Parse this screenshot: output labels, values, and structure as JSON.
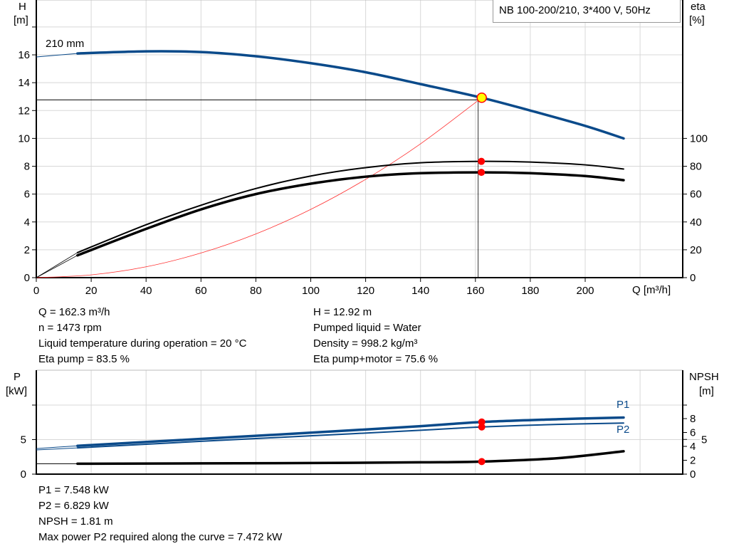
{
  "legend_title": "NB 100-200/210, 3*400 V, 50Hz",
  "colors": {
    "head_curve": "#0a4a8a",
    "efficiency_curve": "#000000",
    "system_curve": "#ff3030",
    "power_curve": "#0a4a8a",
    "npsh_curve": "#000000",
    "duty_point_fill": "#ffff00",
    "duty_point_marker": "#ff0000",
    "grid": "#d8d8d8"
  },
  "chart_data": [
    {
      "type": "line",
      "title": "NB 100-200/210, 3*400 V, 50Hz",
      "xlabel": "Q [m³/h]",
      "ylabel_left": "H [m]",
      "ylabel_left_name": "H",
      "ylabel_left_unit": "[m]",
      "ylabel_right_name": "eta",
      "ylabel_right_unit": "[%]",
      "xlim": [
        0,
        235
      ],
      "ylim_left": [
        0,
        19.9
      ],
      "ylim_right": [
        0,
        199
      ],
      "x_ticks": [
        0,
        20,
        40,
        60,
        80,
        100,
        120,
        140,
        160,
        180,
        200
      ],
      "y_ticks_left": [
        0,
        2,
        4,
        6,
        8,
        10,
        12,
        14,
        16
      ],
      "y_ticks_right": [
        0,
        20,
        40,
        60,
        80,
        100
      ],
      "grid": true,
      "legend_placement": "top-right",
      "curve_label": "210 mm",
      "series": [
        {
          "key": "head",
          "axis": "left",
          "x": [
            0,
            15,
            40,
            60,
            80,
            100,
            120,
            140,
            162.3,
            180,
            200,
            214
          ],
          "y": [
            15.85,
            16.1,
            16.25,
            16.2,
            15.9,
            15.4,
            14.75,
            13.9,
            12.92,
            12.0,
            10.9,
            10.0
          ]
        },
        {
          "key": "eta_pump",
          "axis": "right",
          "x": [
            0,
            15,
            40,
            60,
            80,
            100,
            120,
            140,
            162.3,
            180,
            200,
            214
          ],
          "y": [
            0,
            18,
            38,
            52,
            64,
            73,
            79,
            82.5,
            83.5,
            83,
            81,
            78
          ]
        },
        {
          "key": "eta_pump_motor",
          "axis": "right",
          "x": [
            0,
            15,
            40,
            60,
            80,
            100,
            120,
            140,
            162.3,
            180,
            200,
            214
          ],
          "y": [
            0,
            16,
            35,
            49,
            60,
            67.5,
            72.5,
            75,
            75.6,
            75,
            73,
            70
          ]
        },
        {
          "key": "system",
          "axis": "left",
          "x": [
            0,
            20,
            40,
            60,
            80,
            100,
            120,
            140,
            162.3
          ],
          "y": [
            0,
            0.2,
            0.78,
            1.77,
            3.14,
            4.9,
            7.06,
            9.61,
            12.92
          ]
        }
      ],
      "duty_point": {
        "Q": 162.3,
        "H": 12.92,
        "eta_pump": 83.5,
        "eta_pump_motor": 75.6
      }
    },
    {
      "type": "line",
      "xlabel": "",
      "ylabel_left_name": "P",
      "ylabel_left_unit": "[kW]",
      "ylabel_right_name": "NPSH",
      "ylabel_right_unit": "[m]",
      "xlim": [
        0,
        235
      ],
      "ylim_left": [
        0,
        15
      ],
      "ylim_right": [
        0,
        15
      ],
      "y_ticks_left": [
        0,
        5
      ],
      "y_ticks_right": [
        0,
        2,
        4,
        5,
        6,
        8
      ],
      "grid": true,
      "series": [
        {
          "key": "P1",
          "name": "P1",
          "axis": "left",
          "x": [
            0,
            15,
            60,
            100,
            140,
            162.3,
            190,
            214
          ],
          "y": [
            3.7,
            4.1,
            5.1,
            6.0,
            6.95,
            7.548,
            7.95,
            8.2
          ]
        },
        {
          "key": "P2",
          "name": "P2",
          "axis": "left",
          "x": [
            0,
            15,
            60,
            100,
            140,
            162.3,
            190,
            214
          ],
          "y": [
            3.5,
            3.8,
            4.75,
            5.55,
            6.35,
            6.829,
            7.2,
            7.4
          ]
        },
        {
          "key": "NPSH",
          "axis": "right",
          "x": [
            0,
            15,
            60,
            100,
            140,
            162.3,
            190,
            214
          ],
          "y": [
            1.5,
            1.5,
            1.55,
            1.6,
            1.7,
            1.81,
            2.3,
            3.3
          ]
        }
      ],
      "duty_point": {
        "Q": 162.3,
        "P1": 7.548,
        "P2": 6.829,
        "NPSH": 1.81
      }
    }
  ],
  "info_top_left": [
    "Q = 162.3 m³/h",
    "n = 1473 rpm",
    "Liquid temperature during operation = 20 °C",
    "Eta pump = 83.5 %"
  ],
  "info_top_right": [
    "H = 12.92 m",
    "Pumped liquid = Water",
    "Density = 998.2 kg/m³",
    "Eta pump+motor = 75.6 %"
  ],
  "info_bottom": [
    "P1 = 7.548 kW",
    "P2 = 6.829 kW",
    "NPSH = 1.81 m",
    "Max power P2 required along the curve = 7.472 kW"
  ]
}
